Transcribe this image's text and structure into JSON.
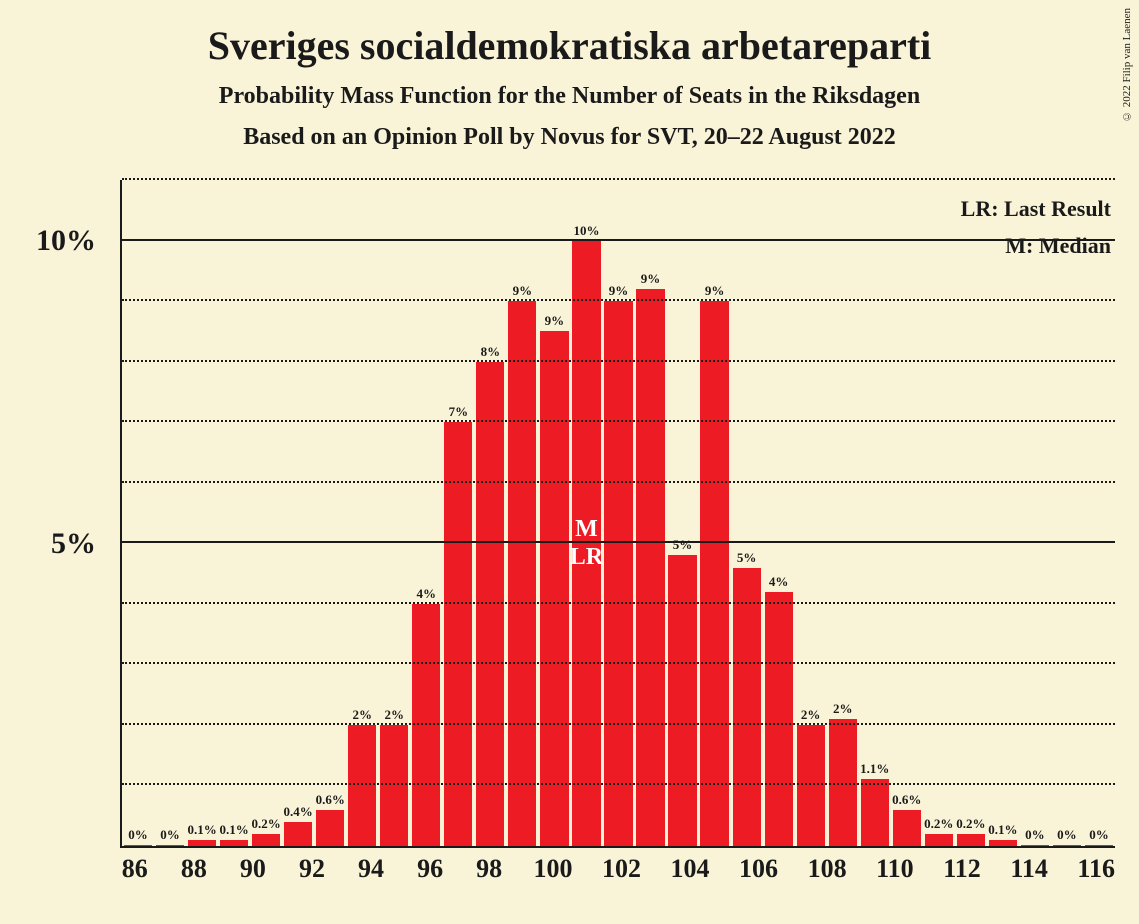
{
  "title": "Sveriges socialdemokratiska arbetareparti",
  "subtitle1": "Probability Mass Function for the Number of Seats in the Riksdagen",
  "subtitle2": "Based on an Opinion Poll by Novus for SVT, 20–22 August 2022",
  "copyright": "© 2022 Filip van Laenen",
  "legend": {
    "lr": "LR: Last Result",
    "m": "M: Median"
  },
  "chart": {
    "type": "bar",
    "bar_color": "#ed1c24",
    "background_color": "#f9f4d8",
    "grid_color": "#1a1a1a",
    "text_color": "#1a1a1a",
    "marker_text_color": "#ffffff",
    "bar_width_ratio": 0.88,
    "title_fontsize": 40,
    "subtitle_fontsize": 24,
    "axis_label_fontsize": 30,
    "xtick_fontsize": 26,
    "bar_label_fontsize": 13,
    "ylim": [
      0,
      11
    ],
    "y_major_ticks": [
      5,
      10
    ],
    "y_minor_step": 1,
    "x_start": 86,
    "x_end": 116,
    "x_tick_step": 2,
    "median_seat": 100,
    "last_result_seat": 100,
    "marker_labels": {
      "m": "M",
      "lr": "LR"
    },
    "bars": [
      {
        "seat": 86,
        "value": 0,
        "label": "0%"
      },
      {
        "seat": 87,
        "value": 0,
        "label": "0%"
      },
      {
        "seat": 88,
        "value": 0.1,
        "label": "0.1%"
      },
      {
        "seat": 89,
        "value": 0.1,
        "label": "0.1%"
      },
      {
        "seat": 90,
        "value": 0.2,
        "label": "0.2%"
      },
      {
        "seat": 91,
        "value": 0.4,
        "label": "0.4%"
      },
      {
        "seat": 92,
        "value": 0.6,
        "label": "0.6%"
      },
      {
        "seat": 93,
        "value": 2,
        "label": "2%"
      },
      {
        "seat": 94,
        "value": 2,
        "label": "2%"
      },
      {
        "seat": 95,
        "value": 4,
        "label": "4%"
      },
      {
        "seat": 96,
        "value": 7,
        "label": "7%"
      },
      {
        "seat": 97,
        "value": 8,
        "label": "8%"
      },
      {
        "seat": 98,
        "value": 9,
        "label": "9%"
      },
      {
        "seat": 99,
        "value": 8.5,
        "label": "9%"
      },
      {
        "seat": 100,
        "value": 10,
        "label": "10%"
      },
      {
        "seat": 101,
        "value": 9,
        "label": "9%"
      },
      {
        "seat": 102,
        "value": 9.2,
        "label": "9%"
      },
      {
        "seat": 103,
        "value": 4.8,
        "label": "5%"
      },
      {
        "seat": 104,
        "value": 9,
        "label": "9%"
      },
      {
        "seat": 105,
        "value": 4.6,
        "label": "5%"
      },
      {
        "seat": 106,
        "value": 4.2,
        "label": "4%"
      },
      {
        "seat": 107,
        "value": 2,
        "label": "2%"
      },
      {
        "seat": 108,
        "value": 2.1,
        "label": "2%"
      },
      {
        "seat": 109,
        "value": 1.1,
        "label": "1.1%"
      },
      {
        "seat": 110,
        "value": 0.6,
        "label": "0.6%"
      },
      {
        "seat": 111,
        "value": 0.2,
        "label": "0.2%"
      },
      {
        "seat": 112,
        "value": 0.2,
        "label": "0.2%"
      },
      {
        "seat": 113,
        "value": 0.1,
        "label": "0.1%"
      },
      {
        "seat": 114,
        "value": 0,
        "label": "0%"
      },
      {
        "seat": 115,
        "value": 0,
        "label": "0%"
      },
      {
        "seat": 116,
        "value": 0,
        "label": "0%"
      }
    ]
  }
}
